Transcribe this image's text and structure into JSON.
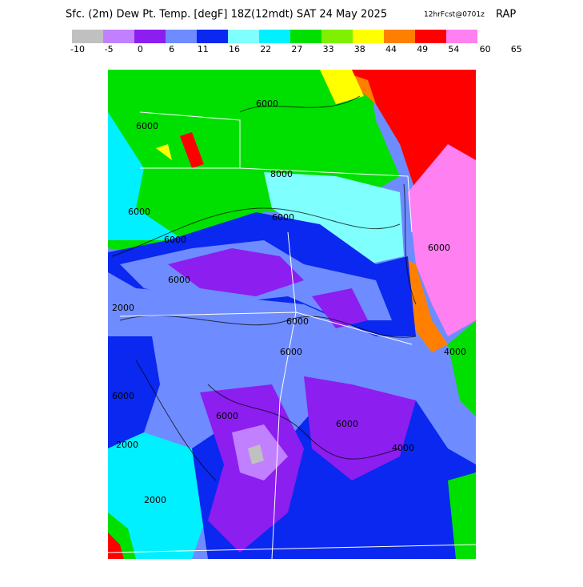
{
  "header": {
    "title": "Sfc. (2m) Dew Pt. Temp. [degF] 18Z(12mdt) SAT 24 May 2025",
    "forecast": "12hrFcst@0701z",
    "model": "RAP"
  },
  "legend": {
    "ticks": [
      -10,
      -5,
      0,
      6,
      11,
      16,
      22,
      27,
      33,
      38,
      44,
      49,
      54,
      60,
      65
    ],
    "colors": [
      "#c0c0c0",
      "#c080ff",
      "#8c1ef0",
      "#6e8cff",
      "#0a28f0",
      "#80ffff",
      "#00f0ff",
      "#00e000",
      "#80f000",
      "#ffff00",
      "#ff8000",
      "#ff0000",
      "#ff80f0"
    ]
  },
  "map": {
    "contour_labels": [
      "6000",
      "6000",
      "6000",
      "6000",
      "8000",
      "6000",
      "6000",
      "6000",
      "2000",
      "6000",
      "6000",
      "6000",
      "2000",
      "2000",
      "4000",
      "6000",
      "6000",
      "4000"
    ]
  }
}
